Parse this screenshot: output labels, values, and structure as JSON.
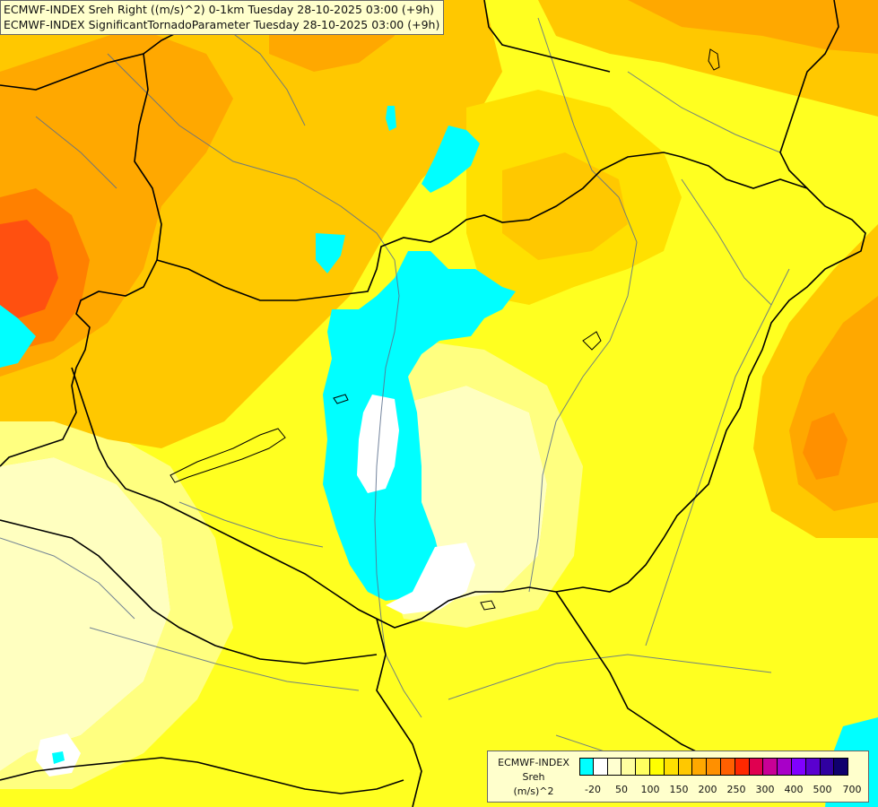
{
  "title": {
    "line1": "ECMWF-INDEX Sreh Right ((m/s)^2) 0-1km Tuesday 28-10-2025 03:00 (+9h)",
    "line2": "ECMWF-INDEX SignificantTornadoParameter Tuesday 28-10-2025 03:00 (+9h)"
  },
  "legend": {
    "line1": "ECMWF-INDEX",
    "line2": "Sreh",
    "line3": "(m/s)^2",
    "colors": [
      "#00ffff",
      "#ffffff",
      "#ffffd0",
      "#ffffa0",
      "#ffff60",
      "#ffff00",
      "#ffe000",
      "#ffc800",
      "#ffa800",
      "#ff9000",
      "#ff6000",
      "#ff2800",
      "#e00050",
      "#c80096",
      "#a800c8",
      "#8000ff",
      "#5a00d0",
      "#3000a0",
      "#10006e"
    ],
    "ticks": [
      "-20",
      "50",
      "100",
      "150",
      "200",
      "250",
      "300",
      "400",
      "500",
      "700"
    ]
  },
  "palette": {
    "cyan": "#00ffff",
    "white": "#ffffff",
    "pale": "#ffffc0",
    "light": "#ffff80",
    "yellow": "#ffff20",
    "gold": "#ffe000",
    "amber": "#ffc800",
    "orange": "#ffa800",
    "deep_orange": "#ff8000",
    "red_orange": "#ff5010",
    "border": "#000000",
    "river": "#5a6e8c"
  }
}
